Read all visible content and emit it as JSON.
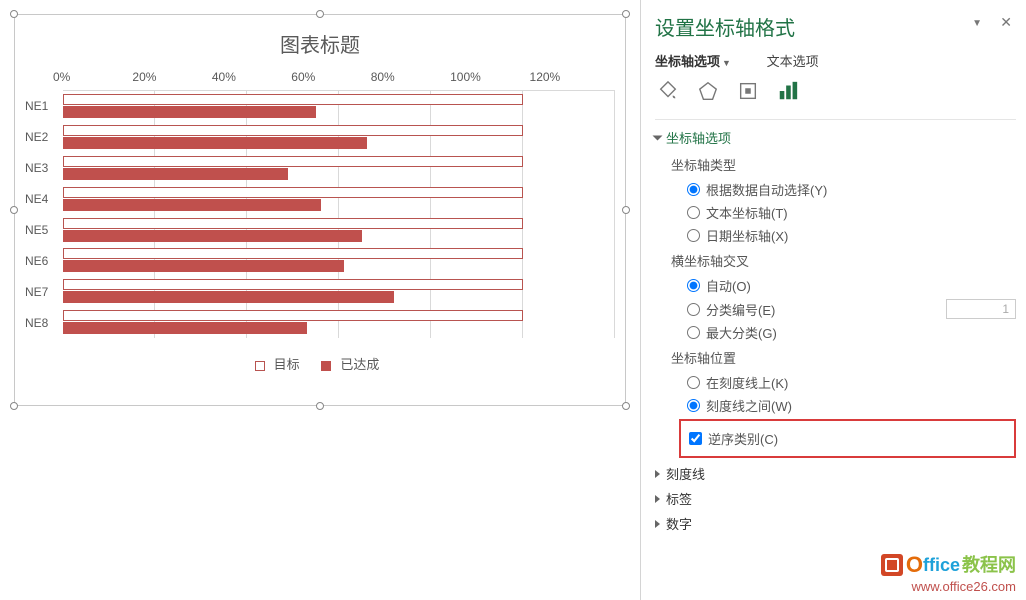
{
  "chart": {
    "title": "图表标题",
    "type": "bar",
    "x_max": 1.2,
    "tick_step": 0.2,
    "tick_labels": [
      "0%",
      "20%",
      "40%",
      "60%",
      "80%",
      "100%",
      "120%"
    ],
    "categories": [
      "NE1",
      "NE2",
      "NE3",
      "NE4",
      "NE5",
      "NE6",
      "NE7",
      "NE8"
    ],
    "target_values": [
      1.0,
      1.0,
      1.0,
      1.0,
      1.0,
      1.0,
      1.0,
      1.0
    ],
    "actual_values": [
      0.55,
      0.66,
      0.49,
      0.56,
      0.65,
      0.61,
      0.72,
      0.53
    ],
    "legend": {
      "target": "目标",
      "actual": "已达成"
    },
    "colors": {
      "target_border": "#b85450",
      "actual_fill": "#c0504d",
      "gridline": "#d9d9d9",
      "text": "#595959"
    }
  },
  "pane": {
    "title": "设置坐标轴格式",
    "tab_axis_options": "坐标轴选项",
    "tab_text_options": "文本选项",
    "section_axis_options": "坐标轴选项",
    "label_axis_type": "坐标轴类型",
    "opt_auto_select": "根据数据自动选择(Y)",
    "opt_text_axis": "文本坐标轴(T)",
    "opt_date_axis": "日期坐标轴(X)",
    "label_h_axis_cross": "横坐标轴交叉",
    "opt_auto": "自动(O)",
    "opt_category_num": "分类编号(E)",
    "opt_category_num_value": "1",
    "opt_max_category": "最大分类(G)",
    "label_axis_position": "坐标轴位置",
    "opt_on_tick": "在刻度线上(K)",
    "opt_between_tick": "刻度线之间(W)",
    "opt_reverse_order": "逆序类别(C)",
    "section_tick_marks": "刻度线",
    "section_labels": "标签",
    "section_number": "数字"
  },
  "watermark": {
    "brand1": "O",
    "brand2": "ffice",
    "brand3": "教程网",
    "url": "www.office26.com"
  }
}
